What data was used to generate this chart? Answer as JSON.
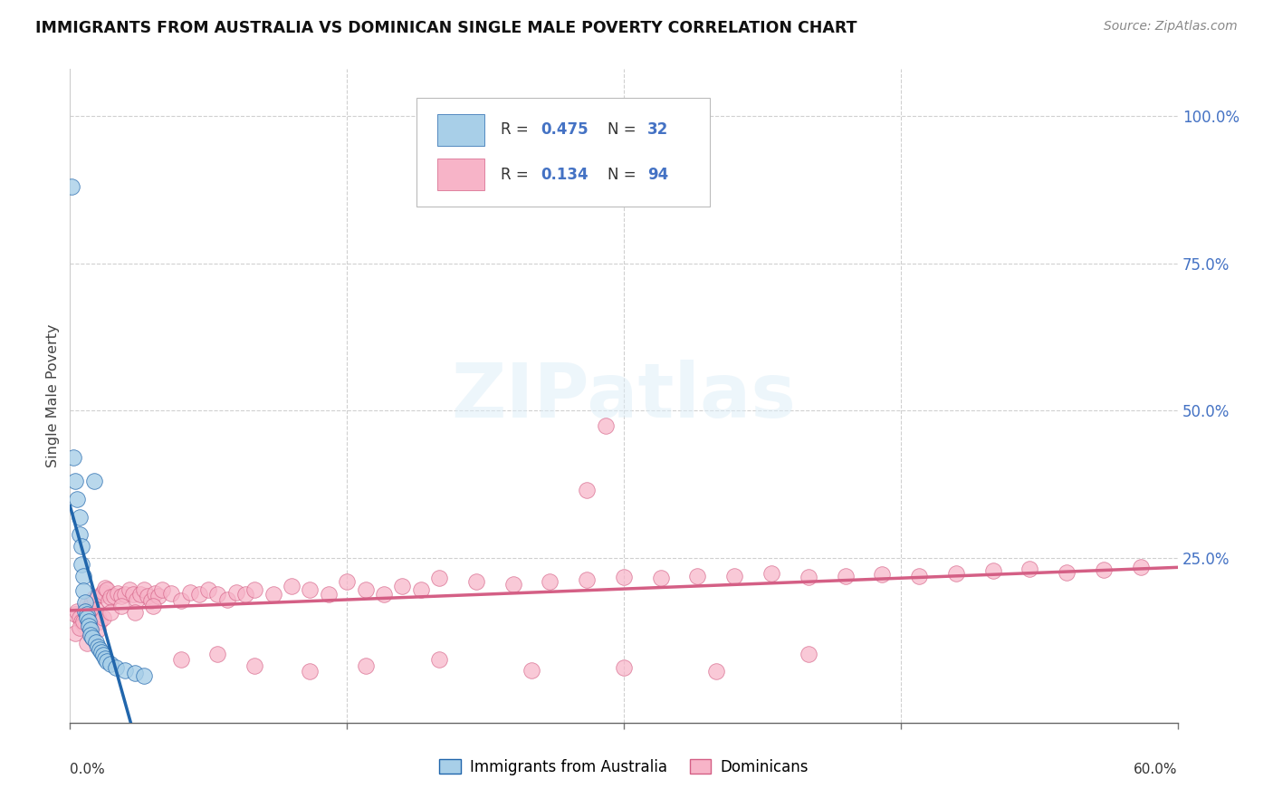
{
  "title": "IMMIGRANTS FROM AUSTRALIA VS DOMINICAN SINGLE MALE POVERTY CORRELATION CHART",
  "source": "Source: ZipAtlas.com",
  "ylabel": "Single Male Poverty",
  "xlim": [
    0.0,
    0.6
  ],
  "ylim": [
    -0.03,
    1.08
  ],
  "right_yticks": [
    0.0,
    0.25,
    0.5,
    0.75,
    1.0
  ],
  "right_yticklabels": [
    "",
    "25.0%",
    "50.0%",
    "75.0%",
    "100.0%"
  ],
  "color_blue": "#a8cfe8",
  "color_blue_line": "#2166ac",
  "color_blue_dash": "#7bb8d8",
  "color_pink": "#f7b4c8",
  "color_pink_line": "#d45f85",
  "blue_x": [
    0.002,
    0.003,
    0.004,
    0.005,
    0.005,
    0.006,
    0.006,
    0.007,
    0.007,
    0.008,
    0.008,
    0.009,
    0.009,
    0.01,
    0.01,
    0.011,
    0.011,
    0.012,
    0.013,
    0.014,
    0.015,
    0.016,
    0.017,
    0.018,
    0.019,
    0.02,
    0.022,
    0.025,
    0.03,
    0.035,
    0.04,
    0.001
  ],
  "blue_y": [
    0.42,
    0.38,
    0.35,
    0.32,
    0.29,
    0.27,
    0.24,
    0.22,
    0.195,
    0.175,
    0.16,
    0.155,
    0.148,
    0.143,
    0.135,
    0.128,
    0.12,
    0.115,
    0.38,
    0.108,
    0.1,
    0.095,
    0.09,
    0.085,
    0.08,
    0.075,
    0.07,
    0.065,
    0.06,
    0.055,
    0.05,
    0.88
  ],
  "pink_x": [
    0.003,
    0.004,
    0.005,
    0.006,
    0.007,
    0.008,
    0.009,
    0.01,
    0.011,
    0.012,
    0.013,
    0.014,
    0.015,
    0.016,
    0.017,
    0.018,
    0.019,
    0.02,
    0.021,
    0.022,
    0.024,
    0.026,
    0.028,
    0.03,
    0.032,
    0.034,
    0.036,
    0.038,
    0.04,
    0.042,
    0.044,
    0.046,
    0.048,
    0.05,
    0.055,
    0.06,
    0.065,
    0.07,
    0.075,
    0.08,
    0.085,
    0.09,
    0.095,
    0.1,
    0.11,
    0.12,
    0.13,
    0.14,
    0.15,
    0.16,
    0.17,
    0.18,
    0.19,
    0.2,
    0.22,
    0.24,
    0.26,
    0.28,
    0.3,
    0.32,
    0.34,
    0.36,
    0.38,
    0.4,
    0.42,
    0.44,
    0.46,
    0.48,
    0.5,
    0.52,
    0.54,
    0.56,
    0.58,
    0.003,
    0.005,
    0.007,
    0.009,
    0.012,
    0.015,
    0.018,
    0.022,
    0.028,
    0.035,
    0.045,
    0.06,
    0.08,
    0.1,
    0.13,
    0.16,
    0.2,
    0.25,
    0.3,
    0.35,
    0.4,
    0.28,
    0.29
  ],
  "pink_y": [
    0.155,
    0.16,
    0.148,
    0.143,
    0.138,
    0.133,
    0.172,
    0.165,
    0.158,
    0.178,
    0.182,
    0.162,
    0.152,
    0.143,
    0.188,
    0.192,
    0.2,
    0.196,
    0.178,
    0.184,
    0.186,
    0.19,
    0.186,
    0.188,
    0.196,
    0.188,
    0.18,
    0.188,
    0.196,
    0.186,
    0.178,
    0.19,
    0.186,
    0.196,
    0.19,
    0.178,
    0.192,
    0.188,
    0.196,
    0.188,
    0.18,
    0.192,
    0.188,
    0.196,
    0.188,
    0.202,
    0.196,
    0.188,
    0.21,
    0.196,
    0.188,
    0.202,
    0.196,
    0.216,
    0.21,
    0.206,
    0.21,
    0.214,
    0.218,
    0.216,
    0.22,
    0.22,
    0.224,
    0.218,
    0.22,
    0.222,
    0.22,
    0.224,
    0.228,
    0.232,
    0.226,
    0.23,
    0.234,
    0.122,
    0.132,
    0.142,
    0.105,
    0.115,
    0.128,
    0.148,
    0.158,
    0.168,
    0.158,
    0.168,
    0.078,
    0.088,
    0.068,
    0.058,
    0.068,
    0.078,
    0.06,
    0.065,
    0.058,
    0.088,
    0.365,
    0.475
  ]
}
